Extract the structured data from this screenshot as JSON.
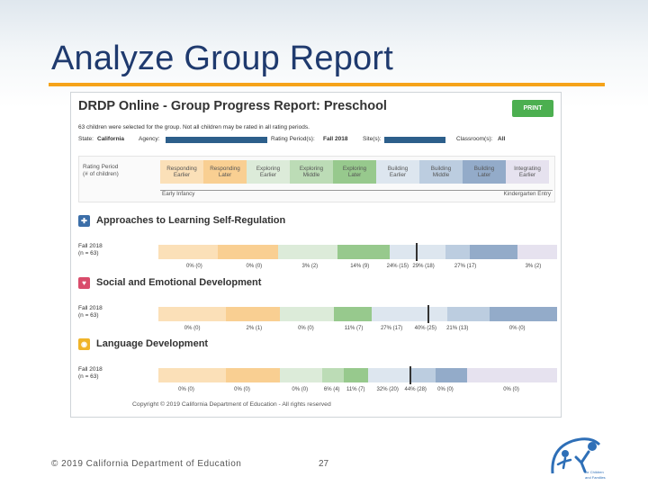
{
  "slide": {
    "title": "Analyze Group Report",
    "footer": "© 2019 California Department of Education",
    "page_number": "27",
    "logo_caption_1": "for Children",
    "logo_caption_2": "and Families"
  },
  "report": {
    "title": "DRDP Online - Group Progress Report: Preschool",
    "print_label": "PRINT",
    "note": "63 children were selected for the group. Not all children may be rated in all rating periods.",
    "state_label": "State:",
    "state_value": "California",
    "agency_label": "Agency:",
    "rating_period_label": "Rating Period(s):",
    "rating_period_value": "Fall 2018",
    "site_label": "Site(s):",
    "classrooms_label": "Classroom(s):",
    "classrooms_value": "All",
    "legend": {
      "label_1": "Rating Period",
      "label_2": "(# of children)",
      "levels": [
        {
          "l1": "Responding",
          "l2": "Earlier",
          "color": "#fbe0b8"
        },
        {
          "l1": "Responding",
          "l2": "Later",
          "color": "#f9cf92"
        },
        {
          "l1": "Exploring",
          "l2": "Earlier",
          "color": "#dcebd9"
        },
        {
          "l1": "Exploring",
          "l2": "Middle",
          "color": "#bcdcb6"
        },
        {
          "l1": "Exploring",
          "l2": "Later",
          "color": "#97c98d"
        },
        {
          "l1": "Building",
          "l2": "Earlier",
          "color": "#dde6ef"
        },
        {
          "l1": "Building",
          "l2": "Middle",
          "color": "#bccde0"
        },
        {
          "l1": "Building",
          "l2": "Later",
          "color": "#93abc9"
        },
        {
          "l1": "Integrating",
          "l2": "Earlier",
          "color": "#e6e2ef"
        }
      ],
      "arrow_left": "Early Infancy",
      "arrow_right": "Kindergarten Entry"
    },
    "sections": [
      {
        "title": "Approaches to Learning Self-Regulation",
        "icon_color": "#3b6ea8",
        "icon_glyph": "✚",
        "row_label_1": "Fall 2018",
        "row_label_2": "(n = 63)",
        "segments": [
          {
            "share": 0.15,
            "color": "#fbe0b8"
          },
          {
            "share": 0.15,
            "color": "#f9cf92"
          },
          {
            "share": 0.15,
            "color": "#dcebd9"
          },
          {
            "share": 0.13,
            "color": "#97c98d"
          },
          {
            "share": 0.14,
            "color": "#dde6ef"
          },
          {
            "share": 0.06,
            "color": "#bccde0"
          },
          {
            "share": 0.12,
            "color": "#93abc9"
          },
          {
            "share": 0.1,
            "color": "#e6e2ef"
          }
        ],
        "marker": 0.645,
        "labels": [
          {
            "text": "0% (0)",
            "pos": 0.09
          },
          {
            "text": "0% (0)",
            "pos": 0.24
          },
          {
            "text": "3% (2)",
            "pos": 0.38
          },
          {
            "text": "14% (9)",
            "pos": 0.505
          },
          {
            "text": "24% (15)",
            "pos": 0.6
          },
          {
            "text": "29% (18)",
            "pos": 0.665
          },
          {
            "text": "27% (17)",
            "pos": 0.77
          },
          {
            "text": "3% (2)",
            "pos": 0.94
          }
        ]
      },
      {
        "title": "Social and Emotional Development",
        "icon_color": "#d94c6b",
        "icon_glyph": "♥",
        "row_label_1": "Fall 2018",
        "row_label_2": "(n = 63)",
        "segments": [
          {
            "share": 0.17,
            "color": "#fbe0b8"
          },
          {
            "share": 0.135,
            "color": "#f9cf92"
          },
          {
            "share": 0.135,
            "color": "#dcebd9"
          },
          {
            "share": 0.095,
            "color": "#97c98d"
          },
          {
            "share": 0.19,
            "color": "#dde6ef"
          },
          {
            "share": 0.105,
            "color": "#bccde0"
          },
          {
            "share": 0.17,
            "color": "#93abc9"
          }
        ],
        "marker": 0.675,
        "labels": [
          {
            "text": "0% (0)",
            "pos": 0.085
          },
          {
            "text": "2% (1)",
            "pos": 0.24
          },
          {
            "text": "0% (0)",
            "pos": 0.37
          },
          {
            "text": "11% (7)",
            "pos": 0.49
          },
          {
            "text": "27% (17)",
            "pos": 0.585
          },
          {
            "text": "40% (25)",
            "pos": 0.67
          },
          {
            "text": "21% (13)",
            "pos": 0.75
          },
          {
            "text": "0% (0)",
            "pos": 0.9
          }
        ]
      },
      {
        "title": "Language Development",
        "icon_color": "#f0b429",
        "icon_glyph": "◉",
        "row_label_1": "Fall 2018",
        "row_label_2": "(n = 63)",
        "segments": [
          {
            "share": 0.17,
            "color": "#fbe0b8"
          },
          {
            "share": 0.135,
            "color": "#f9cf92"
          },
          {
            "share": 0.105,
            "color": "#dcebd9"
          },
          {
            "share": 0.055,
            "color": "#bcdcb6"
          },
          {
            "share": 0.06,
            "color": "#97c98d"
          },
          {
            "share": 0.11,
            "color": "#dde6ef"
          },
          {
            "share": 0.06,
            "color": "#bccde0"
          },
          {
            "share": 0.08,
            "color": "#93abc9"
          },
          {
            "share": 0.225,
            "color": "#e6e2ef"
          }
        ],
        "marker": 0.63,
        "labels": [
          {
            "text": "0% (0)",
            "pos": 0.07
          },
          {
            "text": "0% (0)",
            "pos": 0.21
          },
          {
            "text": "0% (0)",
            "pos": 0.355
          },
          {
            "text": "6% (4)",
            "pos": 0.435
          },
          {
            "text": "11% (7)",
            "pos": 0.495
          },
          {
            "text": "32% (20)",
            "pos": 0.575
          },
          {
            "text": "44% (28)",
            "pos": 0.645
          },
          {
            "text": "0% (0)",
            "pos": 0.72
          },
          {
            "text": "0% (0)",
            "pos": 0.885
          }
        ]
      }
    ],
    "copyright": "Copyright © 2019 California Department of Education - All rights reserved"
  }
}
